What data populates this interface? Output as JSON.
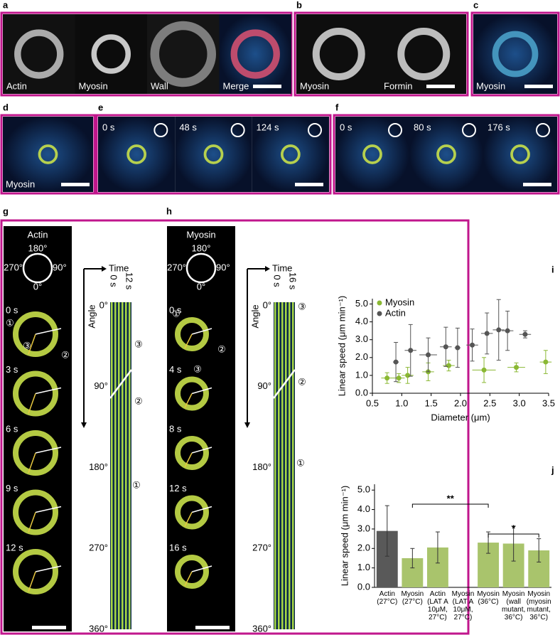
{
  "panels": {
    "a": {
      "letter": "a",
      "labels": [
        "Actin",
        "Myosin",
        "Wall",
        "Merge"
      ]
    },
    "b": {
      "letter": "b",
      "labels": [
        "Myosin",
        "Formin"
      ]
    },
    "c": {
      "letter": "c",
      "labels": [
        "Myosin"
      ]
    },
    "d": {
      "letter": "d",
      "labels": [
        "Myosin"
      ]
    },
    "e": {
      "letter": "e",
      "labels": [
        "0 s",
        "48 s",
        "124 s"
      ]
    },
    "f": {
      "letter": "f",
      "labels": [
        "0 s",
        "80 s",
        "176 s"
      ]
    },
    "g": {
      "letter": "g",
      "title": "Actin",
      "compass": [
        "180°",
        "270°",
        "90°",
        "0°"
      ],
      "times": [
        "0 s",
        "3 s",
        "6 s",
        "9 s",
        "12 s"
      ],
      "frame_marks": [
        "①",
        "②",
        "③"
      ],
      "kymo": {
        "time": "Time",
        "angle": "Angle",
        "t0": "0 s",
        "t1": "12 s",
        "angles": [
          "0°",
          "90°",
          "180°",
          "270°",
          "360°"
        ],
        "marks": [
          "③",
          "②",
          "①"
        ]
      }
    },
    "h": {
      "letter": "h",
      "title": "Myosin",
      "compass": [
        "180°",
        "270°",
        "90°",
        "0°"
      ],
      "times": [
        "0 s",
        "4 s",
        "8 s",
        "12 s",
        "16 s"
      ],
      "frame_marks": [
        "①",
        "②",
        "③"
      ],
      "kymo": {
        "time": "Time",
        "angle": "Angle",
        "t0": "0 s",
        "t1": "16 s",
        "angles": [
          "0°",
          "90°",
          "180°",
          "270°",
          "360°"
        ],
        "marks": [
          "③",
          "②",
          "①"
        ]
      }
    }
  },
  "chart_data": [
    {
      "type": "scatter",
      "letter": "i",
      "xlabel": "Diameter (μm)",
      "ylabel": "Linear speed (μm min⁻¹)",
      "xlim": [
        0.5,
        3.5
      ],
      "xticks": [
        0.5,
        {
          "value": 1,
          "label": "1.0"
        },
        1.5,
        {
          "value": 2,
          "label": "2.0"
        },
        2.5,
        {
          "value": 3,
          "label": "3.0"
        },
        3.5
      ],
      "ylim": [
        0,
        5.3
      ],
      "yticks": [
        {
          "value": 0,
          "label": "0.0"
        },
        {
          "value": 1,
          "label": "1.0"
        },
        {
          "value": 2,
          "label": "2.0"
        },
        {
          "value": 3,
          "label": "3.0"
        },
        {
          "value": 4,
          "label": "4.0"
        },
        {
          "value": 5,
          "label": "5.0"
        }
      ],
      "legend": "top-left",
      "series": [
        {
          "name": "Myosin",
          "color": "#8ab833",
          "x": [
            0.75,
            0.95,
            1.1,
            1.45,
            1.8,
            2.4,
            2.95,
            3.45
          ],
          "values": [
            0.85,
            0.85,
            1.0,
            1.2,
            1.55,
            1.3,
            1.45,
            1.75
          ],
          "xerr": [
            0.1,
            0.1,
            0.1,
            0.1,
            0.1,
            0.2,
            0.15,
            0.1
          ],
          "yerr": [
            0.3,
            0.25,
            0.45,
            0.5,
            0.3,
            0.7,
            0.25,
            0.65
          ]
        },
        {
          "name": "Actin",
          "color": "#555555",
          "x": [
            0.9,
            1.15,
            1.45,
            1.75,
            1.95,
            2.2,
            2.45,
            2.65,
            2.8,
            3.1
          ],
          "values": [
            1.75,
            2.4,
            2.15,
            2.6,
            2.55,
            2.7,
            3.35,
            3.55,
            3.5,
            3.3
          ],
          "xerr": [
            0.05,
            0.1,
            0.15,
            0.1,
            0.05,
            0.1,
            0.1,
            0.1,
            0.1,
            0.1
          ],
          "yerr": [
            1.1,
            1.45,
            0.95,
            1.1,
            1.1,
            0.9,
            1.15,
            1.7,
            1.1,
            0.2
          ]
        }
      ]
    },
    {
      "type": "bar",
      "letter": "j",
      "ylabel": "Linear speed (μm min⁻¹)",
      "categories": [
        "Actin\n(27°C)",
        "Myosin\n(27°C)",
        "Actin\n(LAT A\n10μM,\n27°C)",
        "Myosin\n(LAT A\n10μM,\n27°C)",
        "Myosin\n(36°C)",
        "Myosin\n(wall\nmutant,\n36°C)",
        "Myosin\n(myosin\nmutant,\n36°C)"
      ],
      "values": [
        2.9,
        1.5,
        2.05,
        null,
        2.3,
        2.25,
        1.9
      ],
      "errors": [
        1.3,
        0.5,
        0.8,
        null,
        0.55,
        0.9,
        0.6
      ],
      "colors": [
        "#595959",
        "#a9c46c",
        "#a9c46c",
        "#a9c46c",
        "#a9c46c",
        "#a9c46c",
        "#a9c46c"
      ],
      "ylim": [
        0,
        5.3
      ],
      "yticks": [
        {
          "value": 0,
          "label": "0.0"
        },
        {
          "value": 1,
          "label": "1.0"
        },
        {
          "value": 2,
          "label": "2.0"
        },
        {
          "value": 3,
          "label": "3.0"
        },
        {
          "value": 4,
          "label": "4.0"
        },
        {
          "value": 5,
          "label": "5.0"
        }
      ],
      "annotations": [
        {
          "text": "**"
        },
        {
          "text": "*"
        }
      ]
    }
  ]
}
